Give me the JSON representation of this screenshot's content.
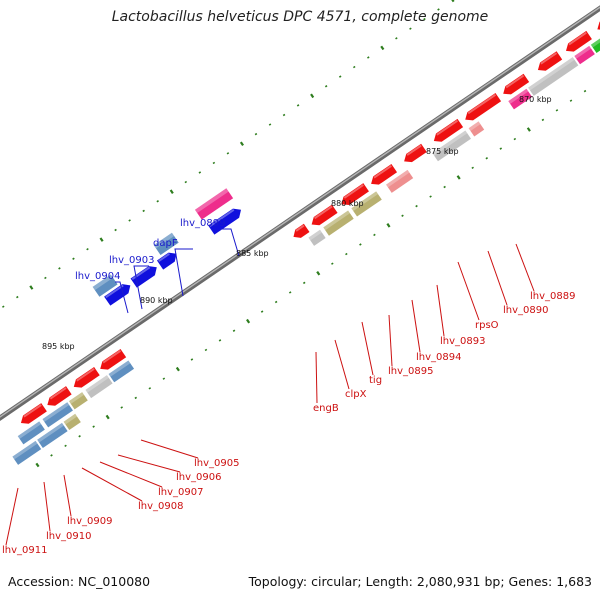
{
  "title": "Lactobacillus helveticus DPC 4571, complete genome",
  "footer": {
    "accession": "Accession: NC_010080",
    "summary": "Topology: circular; Length: 2,080,931 bp; Genes: 1,683"
  },
  "colors": {
    "backbone": "#8c8c8c",
    "tick": "#2e7d1e",
    "forward_label": "#1a1acc",
    "reverse_label": "#cc1111",
    "red_gene": "#ee1111",
    "blue_gene": "#1010dd",
    "steel_gene": "#5f8fc0",
    "pink_gene": "#ee2d8c",
    "gray_gene": "#c0c0c0",
    "olive_gene": "#b8b070",
    "salmon_gene": "#ee8f8f",
    "green_gene": "#22bb22",
    "yellow_gene": "#e8de90"
  },
  "scale_labels": [
    "870 kbp",
    "875 kbp",
    "880 kbp",
    "885 kbp",
    "890 kbp",
    "895 kbp"
  ],
  "forward_labels": [
    "lhv_0899",
    "dapF",
    "lhv_0903",
    "lhv_0904"
  ],
  "reverse_labels": [
    "lhv_0889",
    "lhv_0890",
    "rpsO",
    "lhv_0893",
    "lhv_0894",
    "lhv_0895",
    "tig",
    "clpX",
    "engB",
    "lhv_0905",
    "lhv_0906",
    "lhv_0907",
    "lhv_0908",
    "lhv_0909",
    "lhv_0910",
    "lhv_0911"
  ]
}
